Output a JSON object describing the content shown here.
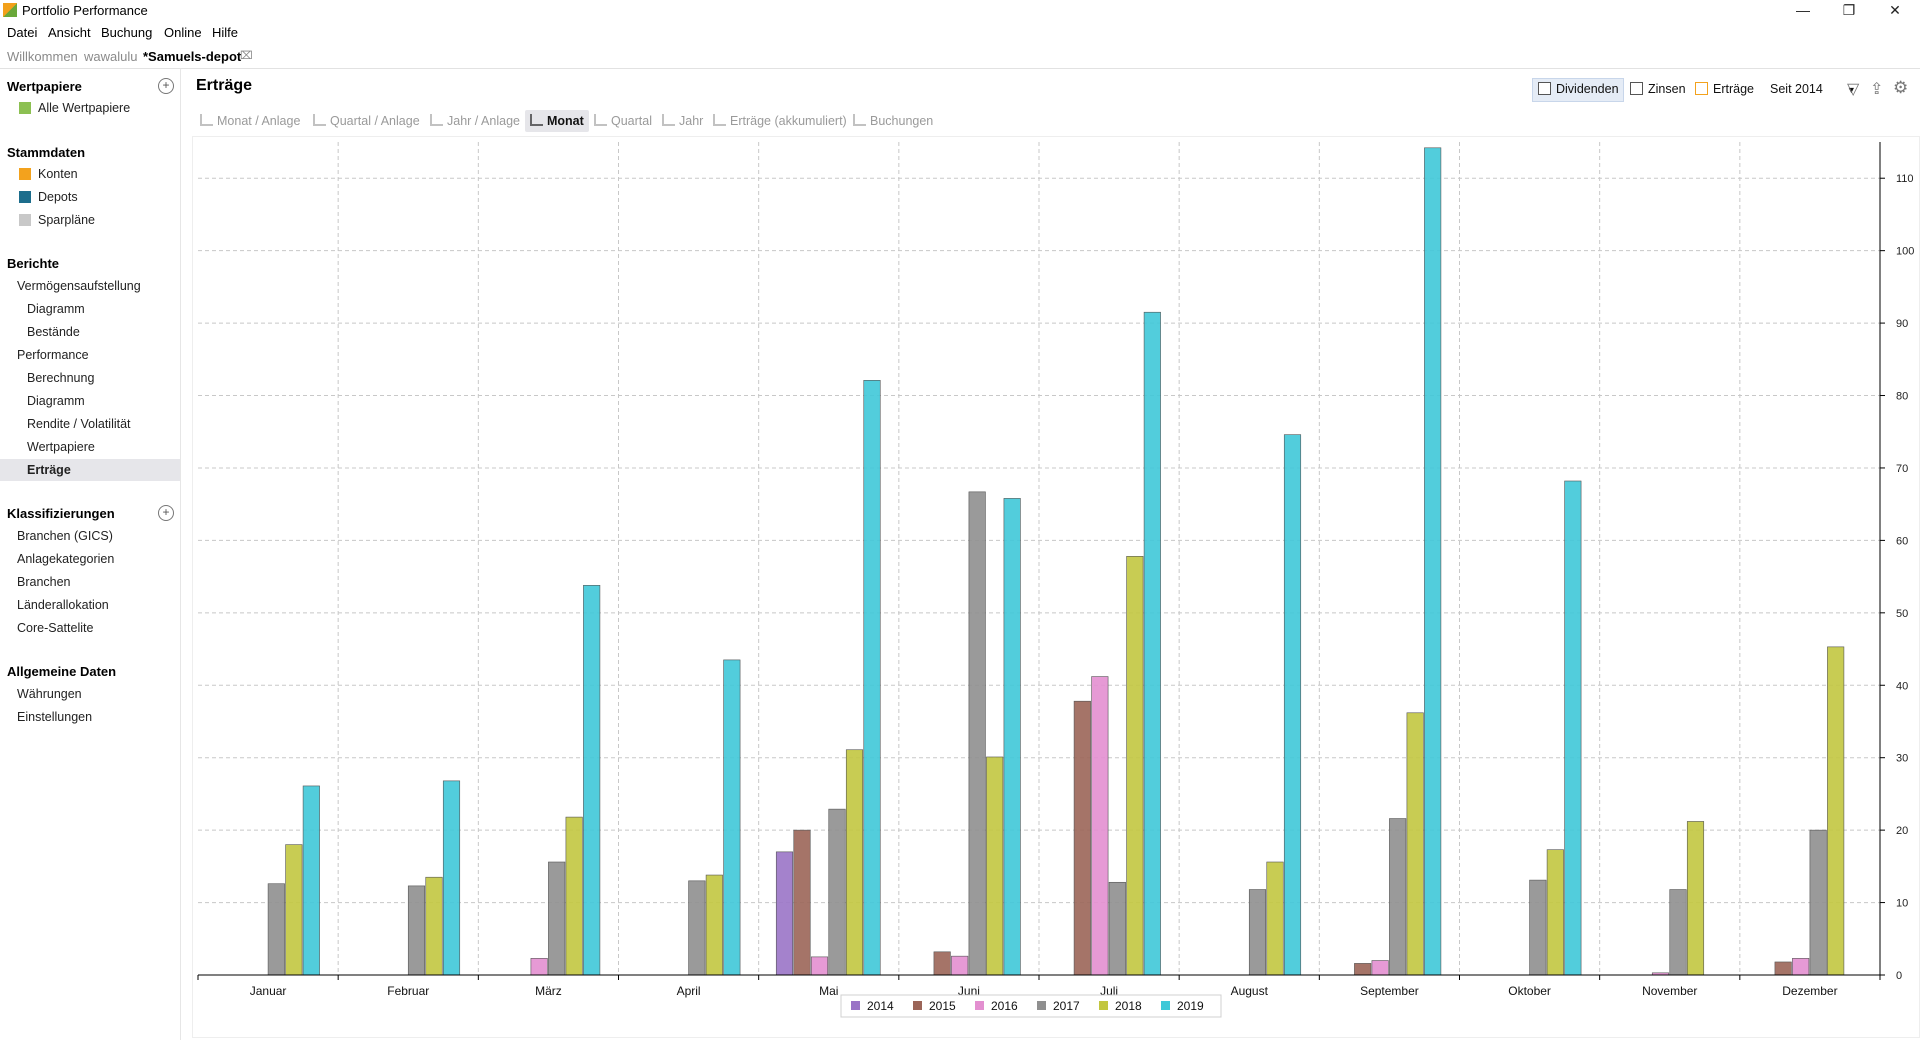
{
  "window": {
    "title": "Portfolio Performance"
  },
  "menu": [
    "Datei",
    "Ansicht",
    "Buchung",
    "Online",
    "Hilfe"
  ],
  "tabs": [
    {
      "label": "Willkommen",
      "active": false
    },
    {
      "label": "wawalulu",
      "active": false
    },
    {
      "label": "*Samuels-depot",
      "active": true
    }
  ],
  "sidebar": {
    "wertpapiere": {
      "title": "Wertpapiere",
      "items": [
        "Alle Wertpapiere"
      ]
    },
    "stammdaten": {
      "title": "Stammdaten",
      "items": [
        "Konten",
        "Depots",
        "Sparpläne"
      ]
    },
    "berichte": {
      "title": "Berichte",
      "items": [
        "Vermögensaufstellung",
        "Diagramm",
        "Bestände",
        "Performance",
        "Berechnung",
        "Diagramm",
        "Rendite / Volatilität",
        "Wertpapiere",
        "Erträge"
      ]
    },
    "klassifizierungen": {
      "title": "Klassifizierungen",
      "items": [
        "Branchen (GICS)",
        "Anlagekategorien",
        "Branchen",
        "Länderallokation",
        "Core-Sattelite"
      ]
    },
    "allgemein": {
      "title": "Allgemeine Daten",
      "items": [
        "Währungen",
        "Einstellungen"
      ]
    },
    "selected": "Erträge"
  },
  "main": {
    "title": "Erträge",
    "filters": {
      "dividenden": "Dividenden",
      "zinsen": "Zinsen",
      "ertraege": "Erträge",
      "period": "Seit 2014"
    },
    "toolbar": [
      "Monat / Anlage",
      "Quartal / Anlage",
      "Jahr / Anlage",
      "Monat",
      "Quartal",
      "Jahr",
      "Erträge (akkumuliert)",
      "Buchungen"
    ],
    "toolbar_active": "Monat"
  },
  "colors": {
    "2014": "#9a74c6",
    "2015": "#9b6558",
    "2016": "#e38fd0",
    "2017": "#8f8f8f",
    "2018": "#c2c640",
    "2019": "#3fc8d8"
  },
  "chart_data": {
    "type": "bar",
    "categories": [
      "Januar",
      "Februar",
      "März",
      "April",
      "Mai",
      "Juni",
      "Juli",
      "August",
      "September",
      "Oktober",
      "November",
      "Dezember"
    ],
    "ylim": [
      0,
      115
    ],
    "yticks": [
      "0",
      "10",
      "20",
      "30",
      "40",
      "50",
      "60",
      "70",
      "80",
      "90",
      "100",
      "110"
    ],
    "grid": true,
    "legend_position": "bottom",
    "series": [
      {
        "name": "2014",
        "values": [
          0,
          0,
          0,
          0,
          17,
          0,
          0,
          0,
          0,
          0,
          0,
          0
        ]
      },
      {
        "name": "2015",
        "values": [
          0,
          0,
          0,
          0,
          20,
          3.2,
          37.8,
          0,
          1.6,
          0,
          0,
          1.8
        ]
      },
      {
        "name": "2016",
        "values": [
          0,
          0,
          2.3,
          0,
          2.5,
          2.6,
          41.2,
          0,
          2,
          0,
          0.3,
          2.3
        ]
      },
      {
        "name": "2017",
        "values": [
          12.6,
          12.3,
          15.6,
          13,
          22.9,
          66.7,
          12.8,
          11.8,
          21.6,
          13.1,
          11.8,
          20
        ]
      },
      {
        "name": "2018",
        "values": [
          18,
          13.5,
          21.8,
          13.8,
          31.1,
          30.1,
          57.8,
          15.6,
          36.2,
          17.3,
          21.2,
          45.3
        ]
      },
      {
        "name": "2019",
        "values": [
          26.1,
          26.8,
          53.8,
          43.5,
          82.1,
          65.8,
          91.5,
          74.6,
          114.2,
          68.2,
          0,
          0
        ]
      }
    ]
  }
}
